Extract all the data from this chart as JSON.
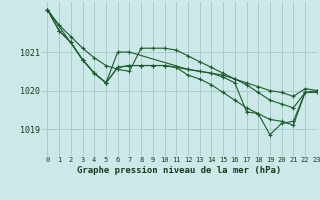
{
  "title": "Graphe pression niveau de la mer (hPa)",
  "bg_color": "#cce8e8",
  "grid_color": "#aacccc",
  "line_color": "#1a5c2a",
  "xlim": [
    -0.5,
    23
  ],
  "ylim": [
    1018.3,
    1022.3
  ],
  "yticks": [
    1019,
    1020,
    1021
  ],
  "xticks": [
    0,
    1,
    2,
    3,
    4,
    5,
    6,
    7,
    8,
    9,
    10,
    11,
    12,
    13,
    14,
    15,
    16,
    17,
    18,
    19,
    20,
    21,
    22,
    23
  ],
  "series": [
    {
      "x": [
        0,
        1,
        2,
        3,
        4,
        5,
        6,
        7,
        8,
        9,
        10,
        11,
        12,
        13,
        14,
        15,
        16,
        17,
        18,
        19,
        20,
        21,
        22,
        23
      ],
      "y": [
        1022.1,
        1021.7,
        1021.4,
        1021.1,
        1020.85,
        1020.65,
        1020.55,
        1020.5,
        1021.1,
        1021.1,
        1021.1,
        1021.05,
        1020.9,
        1020.75,
        1020.6,
        1020.45,
        1020.3,
        1020.2,
        1020.1,
        1020.0,
        1019.95,
        1019.85,
        1020.05,
        1020.0
      ]
    },
    {
      "x": [
        0,
        1,
        2,
        3,
        4,
        5,
        6,
        7,
        8,
        9,
        10,
        11,
        12,
        13,
        14,
        15,
        16,
        17,
        18,
        19,
        20,
        21,
        22,
        23
      ],
      "y": [
        1022.1,
        1021.55,
        1021.25,
        1020.8,
        1020.45,
        1020.2,
        1020.6,
        1020.65,
        1020.65,
        1020.65,
        1020.65,
        1020.6,
        1020.55,
        1020.5,
        1020.45,
        1020.4,
        1020.3,
        1020.15,
        1019.95,
        1019.75,
        1019.65,
        1019.55,
        1019.95,
        1020.0
      ]
    },
    {
      "x": [
        0,
        1,
        2,
        3,
        4,
        5,
        6,
        7,
        8,
        9,
        10,
        11,
        12,
        13,
        14,
        15,
        16,
        17,
        18,
        19,
        20,
        21,
        22,
        23
      ],
      "y": [
        1022.1,
        1021.55,
        1021.25,
        1020.8,
        1020.45,
        1020.2,
        1020.6,
        1020.65,
        1020.65,
        1020.65,
        1020.65,
        1020.6,
        1020.4,
        1020.3,
        1020.15,
        1019.95,
        1019.75,
        1019.55,
        1019.4,
        1019.25,
        1019.2,
        1019.1,
        1019.95,
        1019.95
      ]
    },
    {
      "x": [
        0,
        3,
        4,
        5,
        6,
        7,
        12,
        14,
        15,
        16,
        17,
        18,
        19,
        20,
        21,
        22
      ],
      "y": [
        1022.1,
        1020.8,
        1020.45,
        1020.2,
        1021.0,
        1021.0,
        1020.55,
        1020.45,
        1020.35,
        1020.2,
        1019.45,
        1019.4,
        1018.85,
        1019.15,
        1019.2,
        1019.95
      ]
    }
  ]
}
